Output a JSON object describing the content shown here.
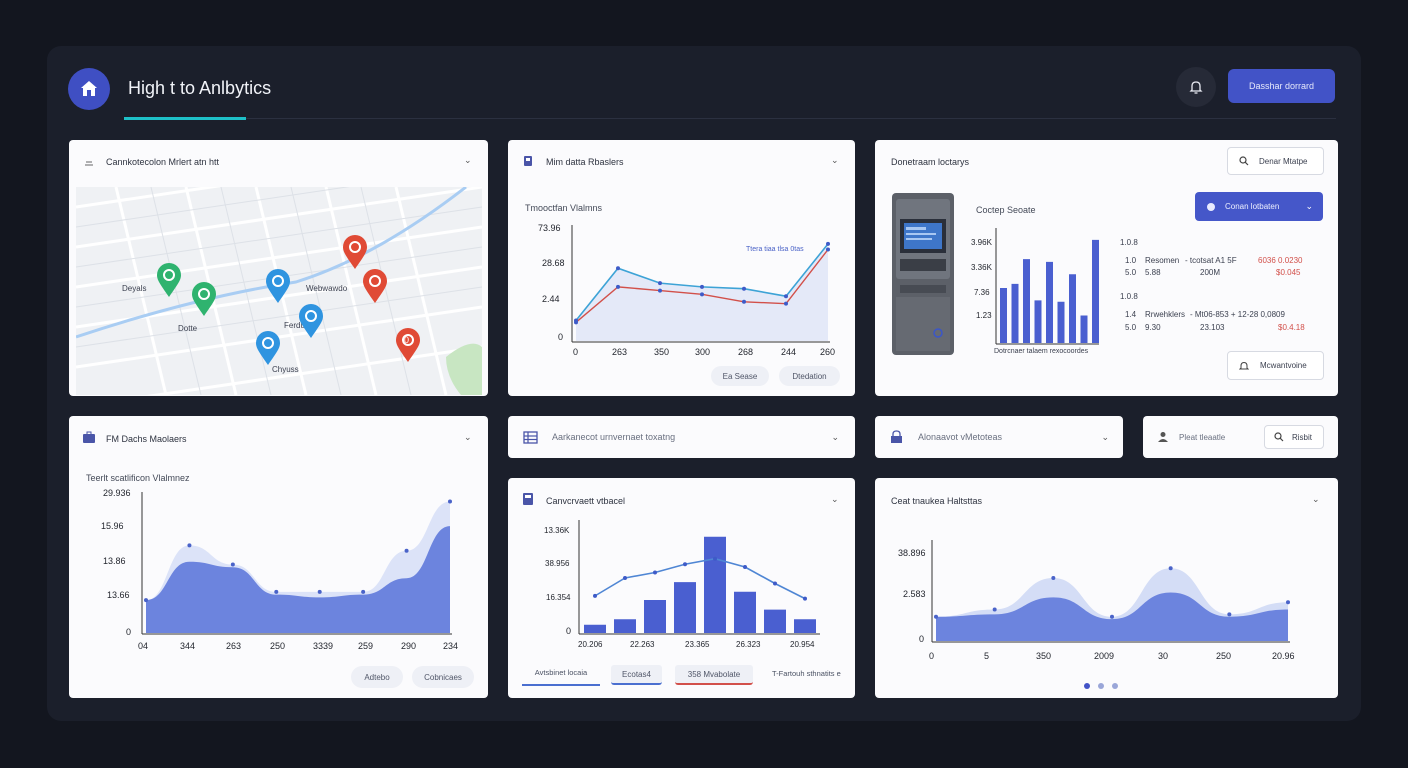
{
  "header": {
    "app_title": "High t to Anlbytics",
    "primary_button_label": "Dasshar dorrard"
  },
  "map_card": {
    "title": "Cannkotecolon Mrlert atn htt",
    "labels": [
      "Deyals",
      "Dotte",
      "Webwawdo",
      "Ferdu",
      "Chyuss"
    ],
    "pin_text": "0"
  },
  "line_card": {
    "title": "Mim datta Rbaslers",
    "subtitle": "Tmooctfan Vlalmns",
    "legend": "Ttera tiaa tlsa 0tas",
    "y_ticks": [
      "73.96",
      "28.68",
      "2.44",
      "0"
    ],
    "x_ticks": [
      "0",
      "263",
      "350",
      "300",
      "268",
      "244",
      "260"
    ],
    "btn1": "Ea Sease",
    "btn2": "Dtedation"
  },
  "atm_card": {
    "title": "Donetraam loctarys",
    "search_label": "Denar Mtatpe",
    "subtitle": "Coctep Seoate",
    "dropdown_label": "Conan lotbaten",
    "caption": "Dotrcnaer talaem rexocoordes",
    "y_ticks": [
      "3.96K",
      "3.36K",
      "7.36",
      "1.23"
    ],
    "right_ticks": [
      "1.0.8",
      "1.0.8"
    ],
    "row1": {
      "label": "Resomen",
      "desc": "- tcotsat A1 5F",
      "value": "6036 0.0230",
      "sub1": "5.88",
      "sub2": "200M",
      "red": "$0.045"
    },
    "row2": {
      "label": "Rrwehklers",
      "desc": "- Mt06-853 + 12-28 0,0809",
      "value": "",
      "sub1": "9.30",
      "sub2": "23.103",
      "red": "$0.4.18"
    },
    "idx": [
      "1.0",
      "5.0",
      "1.4",
      "5.0"
    ],
    "button_label": "Mcwantvoine"
  },
  "area_card": {
    "title": "FM Dachs Maolaers",
    "subtitle": "Teerlt scatlificon Vlalmnez",
    "y_ticks": [
      "29.936",
      "15.96",
      "13.86",
      "13.66",
      "0"
    ],
    "x_ticks": [
      "04",
      "344",
      "263",
      "250",
      "3339",
      "259",
      "290",
      "234"
    ],
    "btn1": "Adtebo",
    "btn2": "Cobnicaes"
  },
  "small_dropdowns": {
    "d1": "Aarkanecot urnvernaet toxatng",
    "d2": "Alonaavot vMetoteas",
    "d3_label": "Pleat tleaatle",
    "d3_button": "Risbit"
  },
  "bar_card": {
    "title": "Canvcrvaett vtbacel",
    "y_ticks": [
      "13.36K",
      "38.956",
      "16.354",
      "0"
    ],
    "x_ticks": [
      "20.206",
      "22.263",
      "23.365",
      "26.323",
      "20.954"
    ],
    "tabs": [
      "Avtsbinet locaia",
      "Ecotas4",
      "358 Mvabolate",
      "T-Fartouh sthnatits e"
    ]
  },
  "stats_card": {
    "title": "Ceat tnaukea Haltsttas",
    "y_ticks": [
      "38.896",
      "2.583",
      "0"
    ],
    "x_ticks": [
      "0",
      "5",
      "350",
      "2009",
      "30",
      "250",
      "20.96"
    ]
  },
  "colors": {
    "accent": "#4253c7",
    "teal": "#1ec0c8",
    "blue": "#3f51c6",
    "pin_green": "#2fb36f",
    "pin_blue": "#2f94e0",
    "pin_red": "#e04a35"
  },
  "chart_data": [
    {
      "type": "line",
      "title": "Tmooctfan Vlalmns",
      "x": [
        "0",
        "263",
        "350",
        "300",
        "268",
        "244",
        "260"
      ],
      "series": [
        {
          "values": [
            0.55,
            1.95,
            1.55,
            1.45,
            1.4,
            1.2,
            2.6
          ]
        },
        {
          "values": [
            0.5,
            1.45,
            1.35,
            1.25,
            1.05,
            1.0,
            2.45
          ]
        }
      ],
      "ylim": [
        0,
        3
      ]
    },
    {
      "type": "bar",
      "title": "Coctep Seoate",
      "categories": [
        "1",
        "2",
        "3",
        "4",
        "5",
        "6",
        "7",
        "8",
        "9"
      ],
      "values": [
        2.0,
        2.15,
        3.05,
        1.55,
        2.95,
        1.5,
        2.5,
        1.0,
        3.75
      ],
      "ylim": [
        0,
        4
      ]
    },
    {
      "type": "area",
      "title": "Teerlt scatlificon Vlalmnez",
      "x": [
        "04",
        "344",
        "263",
        "250",
        "3339",
        "259",
        "290",
        "234"
      ],
      "series": [
        {
          "values": [
            1.2,
            3.2,
            2.5,
            1.5,
            1.5,
            1.5,
            3.0,
            4.8
          ]
        },
        {
          "values": [
            1.2,
            2.6,
            2.4,
            1.4,
            1.3,
            1.4,
            2.0,
            3.9
          ]
        }
      ],
      "ylim": [
        0,
        5
      ]
    },
    {
      "type": "bar",
      "title": "Canvcrvaett vtbacel",
      "categories": [
        "1",
        "2",
        "3",
        "4",
        "5",
        "6",
        "7",
        "8"
      ],
      "values": [
        0.6,
        1.0,
        2.4,
        3.7,
        7.0,
        3.0,
        1.7,
        1.0
      ],
      "line": [
        2.7,
        4.0,
        4.4,
        5.0,
        5.4,
        4.8,
        3.6,
        2.5
      ],
      "ylim": [
        0,
        8
      ]
    },
    {
      "type": "area",
      "title": "Ceat tnaukea Haltsttas",
      "x": [
        "0",
        "5",
        "350",
        "2009",
        "30",
        "250",
        "20.96"
      ],
      "series": [
        {
          "values": [
            1.0,
            1.3,
            2.6,
            1.0,
            3.0,
            1.1,
            1.6
          ]
        },
        {
          "values": [
            1.0,
            1.1,
            1.8,
            0.9,
            2.0,
            1.0,
            1.3
          ]
        }
      ],
      "ylim": [
        0,
        4
      ]
    }
  ]
}
